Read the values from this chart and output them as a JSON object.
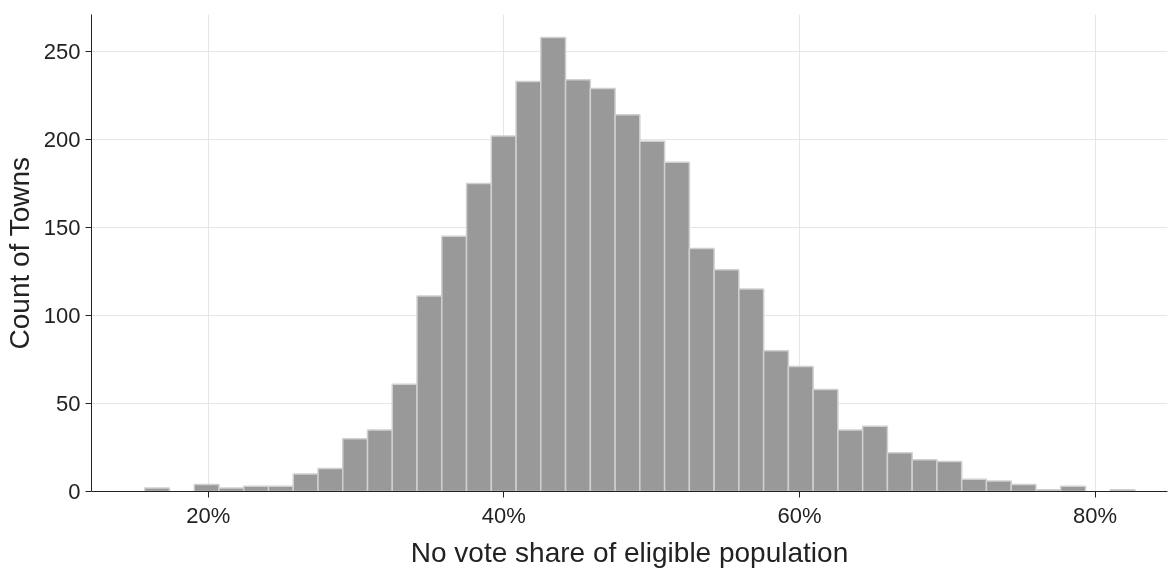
{
  "chart_data": {
    "type": "histogram",
    "xlabel": "No vote share of eligible population",
    "ylabel": "Count of Towns",
    "bins": [
      15.7,
      17.375,
      19.05,
      20.725,
      22.4,
      24.075,
      25.75,
      27.425,
      29.1,
      30.775,
      32.45,
      34.125,
      35.8,
      37.475,
      39.15,
      40.825,
      42.5,
      44.175,
      45.85,
      47.525,
      49.2,
      50.875,
      52.55,
      54.225,
      55.9,
      57.575,
      59.25,
      60.925,
      62.6,
      64.275,
      65.95,
      67.625,
      69.3,
      70.975,
      72.65,
      74.325,
      76.0,
      77.675,
      79.35,
      81.025,
      82.7
    ],
    "values": [
      2,
      0,
      4,
      2,
      3,
      3,
      10,
      13,
      30,
      35,
      61,
      111,
      145,
      175,
      202,
      233,
      258,
      234,
      229,
      214,
      199,
      187,
      138,
      126,
      115,
      80,
      71,
      58,
      35,
      37,
      22,
      18,
      17,
      7,
      6,
      4,
      1,
      3,
      0,
      1
    ],
    "color": "#999999",
    "xlim": [
      12.1,
      84.9
    ],
    "xticks": [
      {
        "value": 20,
        "label": "20%"
      },
      {
        "value": 40,
        "label": "40%"
      },
      {
        "value": 60,
        "label": "60%"
      },
      {
        "value": 80,
        "label": "80%"
      }
    ],
    "ylim": [
      0,
      271
    ],
    "yticks": [
      0,
      50,
      100,
      150,
      200,
      250
    ],
    "grid": true
  }
}
